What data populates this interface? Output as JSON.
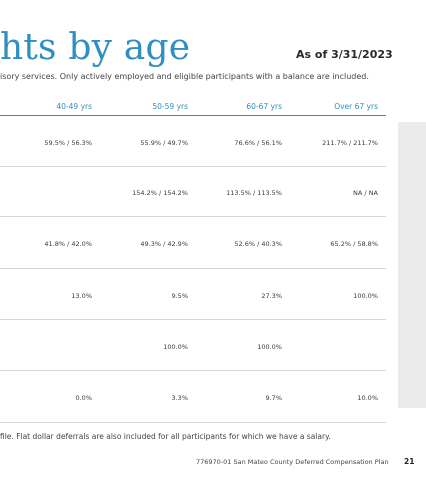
{
  "title": "hts by age",
  "as_of": "As of 3/31/2023",
  "subtitle": "isory services. Only actively employed and eligible participants with a balance are included.",
  "columns": [
    "40-49 yrs",
    "50-59 yrs",
    "60-67 yrs",
    "Over 67 yrs"
  ],
  "rows": [
    [
      "59.5% / 56.3%",
      "55.9% / 49.7%",
      "76.6% / 56.1%",
      "211.7% / 211.7%"
    ],
    [
      "",
      "154.2% / 154.2%",
      "113.5% / 113.5%",
      "NA / NA"
    ],
    [
      "41.8% / 42.0%",
      "49.3% / 42.9%",
      "52.6% / 40.3%",
      "65.2% / 58.8%"
    ],
    [
      "13.0%",
      "9.5%",
      "27.3%",
      "100.0%"
    ],
    [
      "",
      "100.0%",
      "100.0%",
      ""
    ],
    [
      "0.0%",
      "3.3%",
      "9.7%",
      "10.0%"
    ]
  ],
  "footnote": "file. Flat dollar deferrals are also included for all participants for which we have a salary.",
  "footer_text": "776970-01 San Mateo County Deferred Compensation Plan",
  "page_number": "21"
}
